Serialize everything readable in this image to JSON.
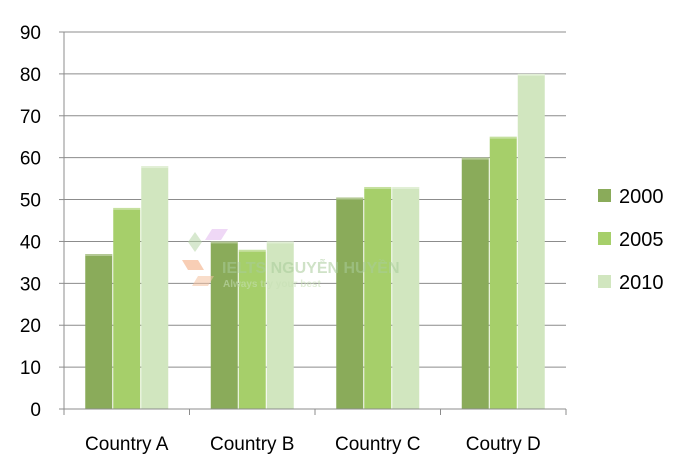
{
  "chart_data": {
    "type": "bar",
    "categories": [
      "Country A",
      "Country B",
      "Country C",
      "Coutry D"
    ],
    "series": [
      {
        "name": "2000",
        "values": [
          37,
          40,
          50.5,
          60
        ],
        "color": "#8aab5a"
      },
      {
        "name": "2005",
        "values": [
          48,
          38,
          53,
          65
        ],
        "color": "#a6cf6a"
      },
      {
        "name": "2010",
        "values": [
          58,
          40,
          53,
          80
        ],
        "color": "#d1e6bf"
      }
    ],
    "ylim": [
      0,
      90
    ],
    "yticks": [
      0,
      10,
      20,
      30,
      40,
      50,
      60,
      70,
      80,
      90
    ],
    "grid": true,
    "legend": "right",
    "title": "",
    "xlabel": "",
    "ylabel": ""
  },
  "watermark": {
    "brand": "IELTS NGUYỄN HUYỀN",
    "tagline": "Always try your best"
  }
}
